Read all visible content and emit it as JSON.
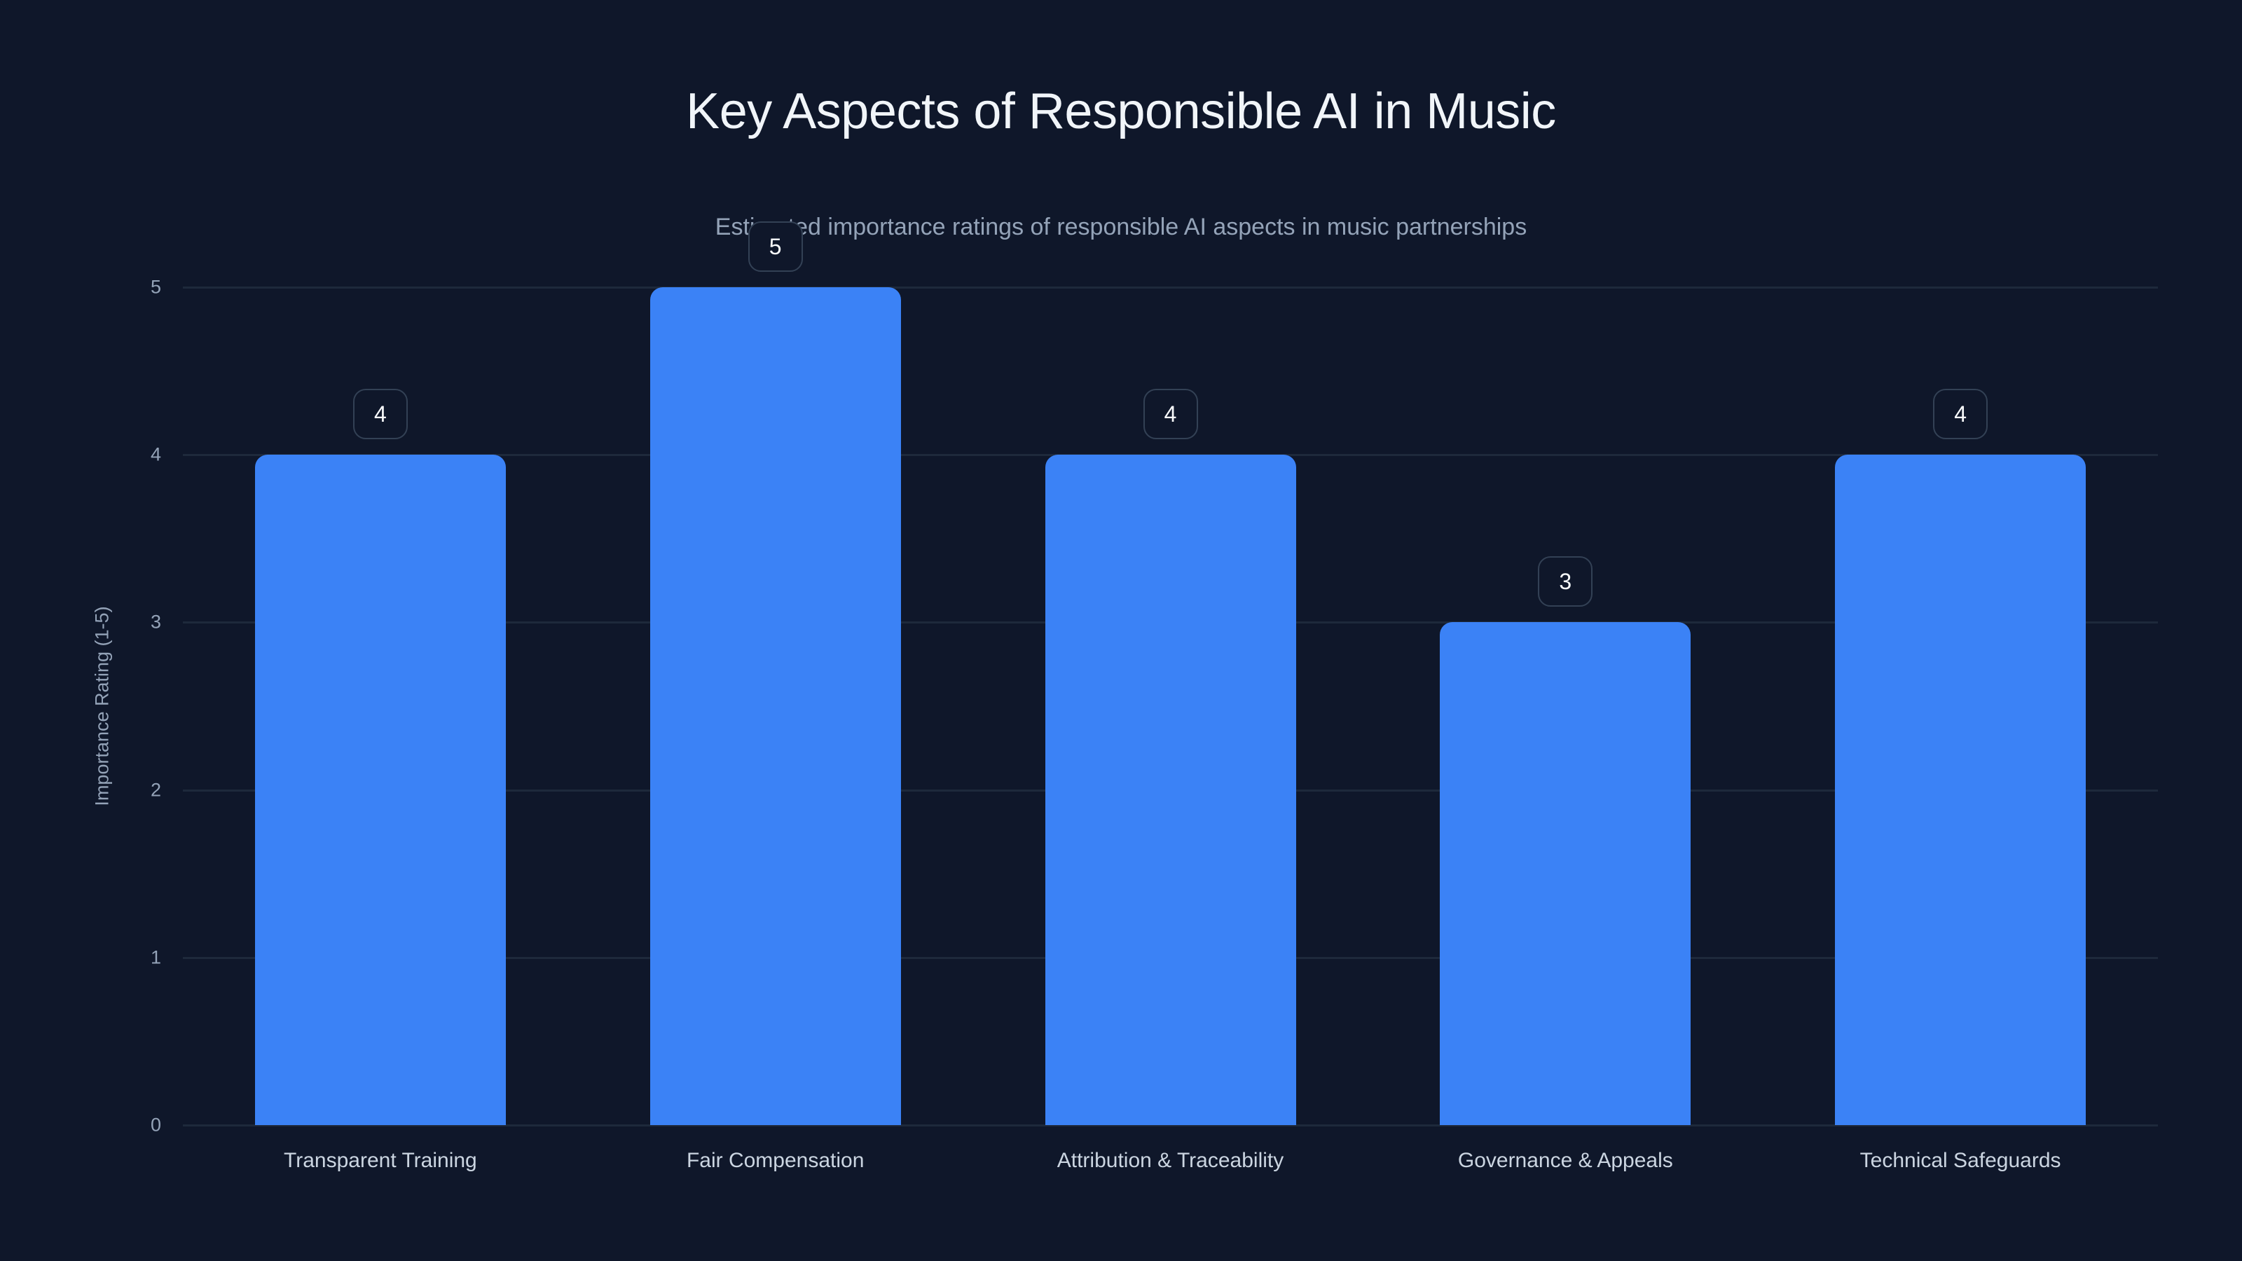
{
  "chart_data": {
    "type": "bar",
    "title": "Key Aspects of Responsible AI in Music",
    "subtitle": "Estimated importance ratings of responsible AI aspects in music partnerships",
    "xlabel": "",
    "ylabel": "Importance Rating (1-5)",
    "categories": [
      "Transparent Training",
      "Fair Compensation",
      "Attribution & Traceability",
      "Governance & Appeals",
      "Technical Safeguards"
    ],
    "values": [
      4,
      5,
      4,
      3,
      4
    ],
    "ylim": [
      0,
      5
    ],
    "yticks": [
      "0",
      "1",
      "2",
      "3",
      "4",
      "5"
    ],
    "grid": true,
    "legend": null,
    "bar_color": "#3b82f6",
    "background": "#0f172a",
    "data_labels": [
      "4",
      "5",
      "4",
      "3",
      "4"
    ]
  }
}
